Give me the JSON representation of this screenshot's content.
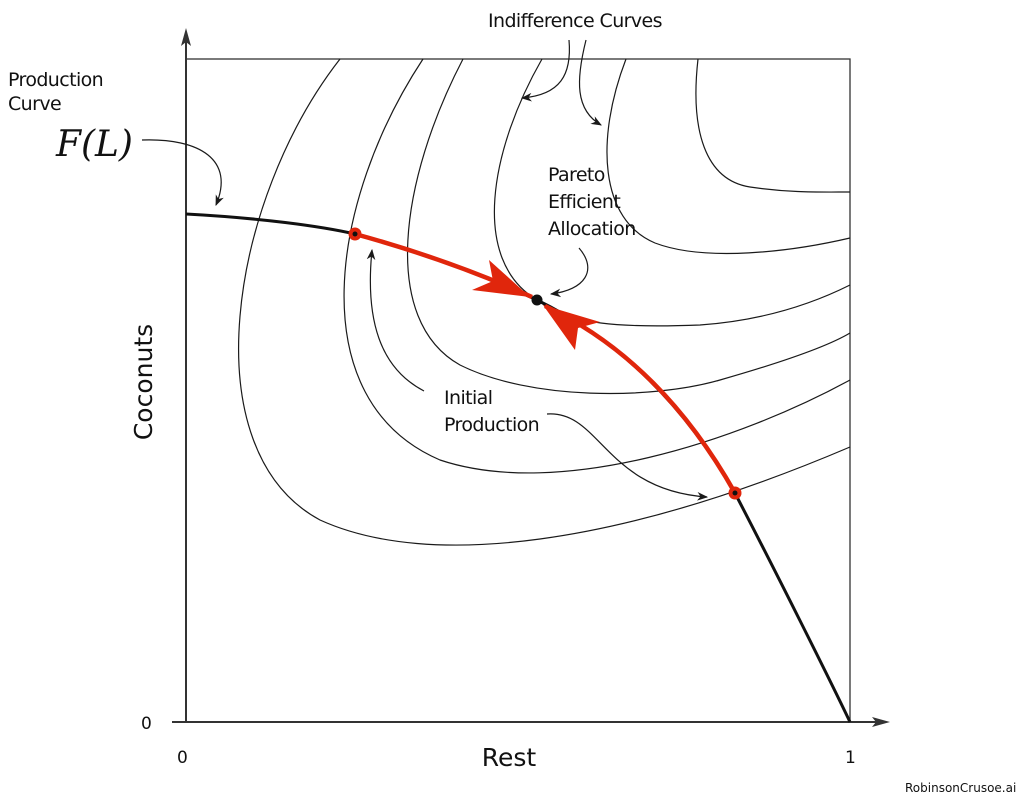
{
  "labels": {
    "indifference_curves": "Indifference Curves",
    "production_curve_line1": "Production",
    "production_curve_line2": "Curve",
    "function_label": "F(L)",
    "pareto_line1": "Pareto",
    "pareto_line2": "Efficient",
    "pareto_line3": "Allocation",
    "initial_line1": "Initial",
    "initial_line2": "Production"
  },
  "axes": {
    "y_label": "Coconuts",
    "x_label": "Rest",
    "y_origin": "0",
    "x_origin": "0",
    "x_max": "1"
  },
  "watermark": "RobinsonCrusoe.ai",
  "colors": {
    "path_red": "#e0260c",
    "line": "#1a1a1a"
  }
}
